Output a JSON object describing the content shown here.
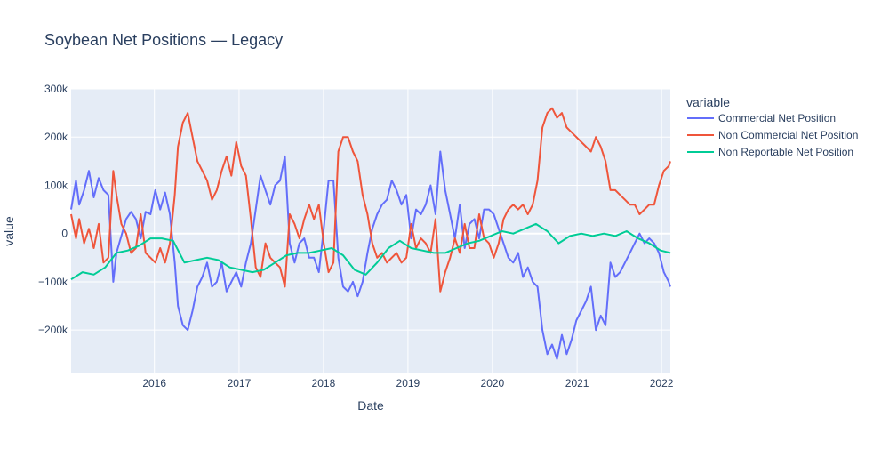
{
  "chart_data": {
    "type": "line",
    "title": "Soybean Net Positions — Legacy",
    "xlabel": "Date",
    "ylabel": "value",
    "legend_title": "variable",
    "legend_placement": "right",
    "grid": true,
    "xlim": [
      "2015-01-06",
      "2022-02-08"
    ],
    "ylim": [
      -290000,
      300000
    ],
    "x_ticks": [
      "2016-01-01",
      "2017-01-01",
      "2018-01-01",
      "2019-01-01",
      "2020-01-01",
      "2021-01-01",
      "2022-01-01"
    ],
    "x_tick_labels": [
      "2016",
      "2017",
      "2018",
      "2019",
      "2020",
      "2021",
      "2022"
    ],
    "y_ticks": [
      -200000,
      -100000,
      0,
      100000,
      200000,
      300000
    ],
    "y_tick_labels": [
      "−200k",
      "−100k",
      "0",
      "100k",
      "200k",
      "300k"
    ],
    "colors": {
      "plot_bg": "#E5ECF6",
      "grid": "#ffffff",
      "text": "#2a3f5f"
    },
    "series": [
      {
        "name": "Commercial Net Position",
        "color": "#636EFA",
        "x": [
          "2015-01-06",
          "2015-01-27",
          "2015-02-10",
          "2015-03-03",
          "2015-03-24",
          "2015-04-14",
          "2015-05-05",
          "2015-05-26",
          "2015-06-16",
          "2015-07-07",
          "2015-07-21",
          "2015-08-11",
          "2015-09-01",
          "2015-09-22",
          "2015-10-13",
          "2015-11-03",
          "2015-11-24",
          "2015-12-15",
          "2016-01-05",
          "2016-01-26",
          "2016-02-16",
          "2016-03-08",
          "2016-03-29",
          "2016-04-12",
          "2016-05-03",
          "2016-05-24",
          "2016-06-14",
          "2016-07-05",
          "2016-07-26",
          "2016-08-16",
          "2016-09-06",
          "2016-09-27",
          "2016-10-18",
          "2016-11-08",
          "2016-11-29",
          "2016-12-20",
          "2017-01-10",
          "2017-01-31",
          "2017-02-21",
          "2017-03-14",
          "2017-04-04",
          "2017-04-25",
          "2017-05-16",
          "2017-06-06",
          "2017-06-27",
          "2017-07-18",
          "2017-08-08",
          "2017-08-29",
          "2017-09-19",
          "2017-10-10",
          "2017-10-31",
          "2017-11-21",
          "2017-12-12",
          "2018-01-02",
          "2018-01-23",
          "2018-02-13",
          "2018-03-06",
          "2018-03-27",
          "2018-04-17",
          "2018-05-08",
          "2018-05-29",
          "2018-06-19",
          "2018-07-10",
          "2018-07-31",
          "2018-08-21",
          "2018-09-11",
          "2018-10-02",
          "2018-10-23",
          "2018-11-13",
          "2018-12-04",
          "2018-12-25",
          "2019-01-15",
          "2019-02-05",
          "2019-02-26",
          "2019-03-19",
          "2019-04-09",
          "2019-04-30",
          "2019-05-21",
          "2019-06-11",
          "2019-07-02",
          "2019-07-23",
          "2019-08-13",
          "2019-09-03",
          "2019-09-24",
          "2019-10-15",
          "2019-11-05",
          "2019-11-26",
          "2019-12-17",
          "2020-01-07",
          "2020-01-28",
          "2020-02-18",
          "2020-03-10",
          "2020-03-31",
          "2020-04-21",
          "2020-05-12",
          "2020-06-02",
          "2020-06-23",
          "2020-07-14",
          "2020-08-04",
          "2020-08-25",
          "2020-09-15",
          "2020-10-06",
          "2020-10-27",
          "2020-11-17",
          "2020-12-08",
          "2020-12-29",
          "2021-01-19",
          "2021-02-09",
          "2021-03-02",
          "2021-03-23",
          "2021-04-13",
          "2021-05-04",
          "2021-05-25",
          "2021-06-15",
          "2021-07-06",
          "2021-07-27",
          "2021-08-17",
          "2021-09-07",
          "2021-09-28",
          "2021-10-19",
          "2021-11-09",
          "2021-11-30",
          "2021-12-21",
          "2022-01-11",
          "2022-02-01",
          "2022-02-08"
        ],
        "values": [
          50000,
          110000,
          60000,
          90000,
          130000,
          75000,
          115000,
          90000,
          80000,
          -100000,
          -40000,
          -5000,
          30000,
          45000,
          30000,
          -10000,
          45000,
          40000,
          90000,
          50000,
          85000,
          40000,
          -60000,
          -150000,
          -190000,
          -200000,
          -160000,
          -110000,
          -90000,
          -60000,
          -110000,
          -100000,
          -60000,
          -120000,
          -100000,
          -80000,
          -110000,
          -60000,
          -20000,
          50000,
          120000,
          90000,
          60000,
          100000,
          110000,
          160000,
          -20000,
          -60000,
          -20000,
          -10000,
          -50000,
          -50000,
          -80000,
          10000,
          110000,
          110000,
          -50000,
          -110000,
          -120000,
          -100000,
          -130000,
          -100000,
          -40000,
          10000,
          40000,
          60000,
          70000,
          110000,
          90000,
          60000,
          80000,
          -10000,
          50000,
          40000,
          60000,
          100000,
          40000,
          170000,
          90000,
          40000,
          -10000,
          60000,
          -30000,
          20000,
          30000,
          -10000,
          50000,
          50000,
          40000,
          10000,
          -20000,
          -50000,
          -60000,
          -40000,
          -90000,
          -70000,
          -100000,
          -110000,
          -200000,
          -250000,
          -230000,
          -260000,
          -210000,
          -250000,
          -220000,
          -180000,
          -160000,
          -140000,
          -110000,
          -200000,
          -170000,
          -190000,
          -60000,
          -90000,
          -80000,
          -60000,
          -40000,
          -20000,
          0,
          -20000,
          -10000,
          -20000,
          -40000,
          -80000,
          -100000,
          -110000
        ]
      },
      {
        "name": "Non Commercial Net Position",
        "color": "#EF553B",
        "x": [
          "2015-01-06",
          "2015-01-27",
          "2015-02-10",
          "2015-03-03",
          "2015-03-24",
          "2015-04-14",
          "2015-05-05",
          "2015-05-26",
          "2015-06-16",
          "2015-07-07",
          "2015-07-21",
          "2015-08-11",
          "2015-09-01",
          "2015-09-22",
          "2015-10-13",
          "2015-11-03",
          "2015-11-24",
          "2015-12-15",
          "2016-01-05",
          "2016-01-26",
          "2016-02-16",
          "2016-03-08",
          "2016-03-29",
          "2016-04-12",
          "2016-05-03",
          "2016-05-24",
          "2016-06-14",
          "2016-07-05",
          "2016-07-26",
          "2016-08-16",
          "2016-09-06",
          "2016-09-27",
          "2016-10-18",
          "2016-11-08",
          "2016-11-29",
          "2016-12-20",
          "2017-01-10",
          "2017-01-31",
          "2017-02-21",
          "2017-03-14",
          "2017-04-04",
          "2017-04-25",
          "2017-05-16",
          "2017-06-06",
          "2017-06-27",
          "2017-07-18",
          "2017-08-08",
          "2017-08-29",
          "2017-09-19",
          "2017-10-10",
          "2017-10-31",
          "2017-11-21",
          "2017-12-12",
          "2018-01-02",
          "2018-01-23",
          "2018-02-13",
          "2018-03-06",
          "2018-03-27",
          "2018-04-17",
          "2018-05-08",
          "2018-05-29",
          "2018-06-19",
          "2018-07-10",
          "2018-07-31",
          "2018-08-21",
          "2018-09-11",
          "2018-10-02",
          "2018-10-23",
          "2018-11-13",
          "2018-12-04",
          "2018-12-25",
          "2019-01-15",
          "2019-02-05",
          "2019-02-26",
          "2019-03-19",
          "2019-04-09",
          "2019-04-30",
          "2019-05-21",
          "2019-06-11",
          "2019-07-02",
          "2019-07-23",
          "2019-08-13",
          "2019-09-03",
          "2019-09-24",
          "2019-10-15",
          "2019-11-05",
          "2019-11-26",
          "2019-12-17",
          "2020-01-07",
          "2020-01-28",
          "2020-02-18",
          "2020-03-10",
          "2020-03-31",
          "2020-04-21",
          "2020-05-12",
          "2020-06-02",
          "2020-06-23",
          "2020-07-14",
          "2020-08-04",
          "2020-08-25",
          "2020-09-15",
          "2020-10-06",
          "2020-10-27",
          "2020-11-17",
          "2020-12-08",
          "2020-12-29",
          "2021-01-19",
          "2021-02-09",
          "2021-03-02",
          "2021-03-23",
          "2021-04-13",
          "2021-05-04",
          "2021-05-25",
          "2021-06-15",
          "2021-07-06",
          "2021-07-27",
          "2021-08-17",
          "2021-09-07",
          "2021-09-28",
          "2021-10-19",
          "2021-11-09",
          "2021-11-30",
          "2021-12-21",
          "2022-01-11",
          "2022-02-01",
          "2022-02-08"
        ],
        "values": [
          40000,
          -10000,
          30000,
          -20000,
          10000,
          -30000,
          20000,
          -60000,
          -50000,
          130000,
          80000,
          20000,
          0,
          -40000,
          -30000,
          40000,
          -40000,
          -50000,
          -60000,
          -30000,
          -60000,
          -20000,
          80000,
          180000,
          230000,
          250000,
          200000,
          150000,
          130000,
          110000,
          70000,
          90000,
          130000,
          160000,
          120000,
          190000,
          140000,
          120000,
          30000,
          -70000,
          -90000,
          -20000,
          -50000,
          -60000,
          -70000,
          -110000,
          40000,
          20000,
          -10000,
          30000,
          60000,
          30000,
          60000,
          -20000,
          -80000,
          -60000,
          170000,
          200000,
          200000,
          170000,
          150000,
          80000,
          40000,
          -20000,
          -50000,
          -40000,
          -60000,
          -50000,
          -40000,
          -60000,
          -50000,
          20000,
          -30000,
          -10000,
          -20000,
          -40000,
          30000,
          -120000,
          -80000,
          -50000,
          -10000,
          -40000,
          20000,
          -30000,
          -30000,
          40000,
          -10000,
          -20000,
          -50000,
          -20000,
          30000,
          50000,
          60000,
          50000,
          60000,
          40000,
          60000,
          110000,
          220000,
          250000,
          260000,
          240000,
          250000,
          220000,
          210000,
          200000,
          190000,
          180000,
          170000,
          200000,
          180000,
          150000,
          90000,
          90000,
          80000,
          70000,
          60000,
          60000,
          40000,
          50000,
          60000,
          60000,
          100000,
          130000,
          140000,
          150000
        ]
      },
      {
        "name": "Non Reportable Net Position",
        "color": "#00CC96",
        "x": [
          "2015-01-06",
          "2015-02-24",
          "2015-04-14",
          "2015-06-02",
          "2015-07-21",
          "2015-09-08",
          "2015-10-27",
          "2015-12-15",
          "2016-02-02",
          "2016-03-22",
          "2016-05-10",
          "2016-06-28",
          "2016-08-16",
          "2016-10-04",
          "2016-11-22",
          "2017-01-10",
          "2017-02-28",
          "2017-04-18",
          "2017-06-06",
          "2017-07-25",
          "2017-09-12",
          "2017-10-31",
          "2017-12-19",
          "2018-02-06",
          "2018-03-27",
          "2018-05-15",
          "2018-07-03",
          "2018-08-21",
          "2018-10-09",
          "2018-11-27",
          "2019-01-15",
          "2019-03-05",
          "2019-04-23",
          "2019-06-11",
          "2019-07-30",
          "2019-09-17",
          "2019-11-05",
          "2019-12-24",
          "2020-02-11",
          "2020-03-31",
          "2020-05-19",
          "2020-07-07",
          "2020-08-25",
          "2020-10-13",
          "2020-12-01",
          "2021-01-19",
          "2021-03-09",
          "2021-04-27",
          "2021-06-15",
          "2021-08-03",
          "2021-09-21",
          "2021-11-09",
          "2021-12-28",
          "2022-02-08"
        ],
        "values": [
          -95000,
          -80000,
          -85000,
          -70000,
          -40000,
          -35000,
          -25000,
          -10000,
          -10000,
          -15000,
          -60000,
          -55000,
          -50000,
          -55000,
          -70000,
          -75000,
          -80000,
          -75000,
          -60000,
          -45000,
          -40000,
          -40000,
          -35000,
          -30000,
          -45000,
          -75000,
          -85000,
          -60000,
          -30000,
          -15000,
          -30000,
          -35000,
          -40000,
          -40000,
          -30000,
          -20000,
          -15000,
          -5000,
          5000,
          0,
          10000,
          20000,
          5000,
          -20000,
          -5000,
          0,
          -5000,
          0,
          -5000,
          5000,
          -10000,
          -20000,
          -35000,
          -40000
        ]
      }
    ]
  }
}
